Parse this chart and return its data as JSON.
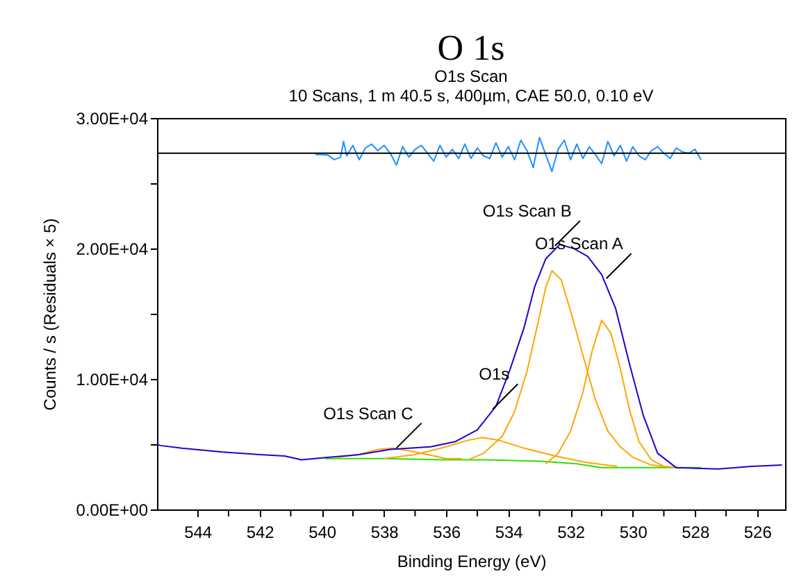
{
  "chart_data": {
    "type": "line",
    "title": "O 1s",
    "subtitle": "O1s Scan\n10 Scans,  1 m 40.5 s,  400µm,  CAE 50.0,  0.10 eV",
    "xlabel": "Binding Energy (eV)",
    "ylabel": "Counts / s  (Residuals × 5)",
    "xlim": [
      545.3,
      525.1
    ],
    "xticks": [
      {
        "value": 544,
        "label": "544"
      },
      {
        "value": 543,
        "label": null
      },
      {
        "value": 542,
        "label": "542"
      },
      {
        "value": 541,
        "label": null
      },
      {
        "value": 540,
        "label": "540"
      },
      {
        "value": 539,
        "label": null
      },
      {
        "value": 538,
        "label": "538"
      },
      {
        "value": 537,
        "label": null
      },
      {
        "value": 536,
        "label": "536"
      },
      {
        "value": 535,
        "label": null
      },
      {
        "value": 534,
        "label": "534"
      },
      {
        "value": 533,
        "label": null
      },
      {
        "value": 532,
        "label": "532"
      },
      {
        "value": 531,
        "label": null
      },
      {
        "value": 530,
        "label": "530"
      },
      {
        "value": 529,
        "label": null
      },
      {
        "value": 528,
        "label": "528"
      },
      {
        "value": 527,
        "label": null
      },
      {
        "value": 526,
        "label": "526"
      }
    ],
    "ylim": [
      0,
      30000
    ],
    "yticks": [
      {
        "value": 0,
        "label": "0.00E+00"
      },
      {
        "value": 5000,
        "label": null
      },
      {
        "value": 10000,
        "label": "1.00E+04"
      },
      {
        "value": 15000,
        "label": null
      },
      {
        "value": 20000,
        "label": "2.00E+04"
      },
      {
        "value": 25000,
        "label": null
      },
      {
        "value": 30000,
        "label": "3.00E+04"
      }
    ],
    "grid": false,
    "legend": false,
    "marker": "none",
    "line_style": "solid",
    "ref_lines": [
      {
        "axis": "y",
        "value": 27300,
        "color": "#000000"
      }
    ],
    "annotations": [
      {
        "text": "O1s Scan B",
        "x": 532.5,
        "y": 20200
      },
      {
        "text": "O1s Scan A",
        "x": 530.85,
        "y": 17700
      },
      {
        "text": "O1s",
        "x": 534.5,
        "y": 7700
      },
      {
        "text": "O1s Scan C",
        "x": 537.6,
        "y": 4700
      }
    ],
    "series": [
      {
        "color": "#33dd00",
        "x": [
          539.9,
          538,
          536,
          534.7,
          533,
          531.8,
          531,
          530,
          529,
          528.3,
          527.8
        ],
        "values": [
          3900,
          3900,
          3800,
          3800,
          3700,
          3500,
          3200,
          3200,
          3200,
          3200,
          3200
        ]
      },
      {
        "color": "#ffa500",
        "x": [
          539.5,
          538.8,
          538.2,
          537.7,
          537.2,
          536.6,
          536.0,
          535.5
        ],
        "values": [
          4000,
          4200,
          4600,
          4700,
          4500,
          4200,
          3900,
          3900
        ]
      },
      {
        "color": "#ffa500",
        "x": [
          538,
          537,
          536,
          535.3,
          534.85,
          534.3,
          533.5,
          532.5,
          531.5,
          530.5
        ],
        "values": [
          3900,
          4200,
          4800,
          5300,
          5500,
          5300,
          4700,
          4100,
          3600,
          3300
        ]
      },
      {
        "color": "#ffa500",
        "x": [
          535.3,
          534.8,
          534.2,
          533.8,
          533.4,
          533.0,
          532.8,
          532.6,
          532.3,
          532.0,
          531.6,
          531.2,
          530.8,
          530.4,
          530.0,
          529.4,
          528.8
        ],
        "values": [
          3800,
          4300,
          5600,
          7500,
          10600,
          14800,
          17000,
          18300,
          17600,
          15200,
          11800,
          8400,
          6000,
          4800,
          4000,
          3400,
          3250
        ]
      },
      {
        "color": "#ffa500",
        "x": [
          532.8,
          532.4,
          532.0,
          531.6,
          531.3,
          531.0,
          530.7,
          530.4,
          530.1,
          529.8,
          529.4,
          529.0,
          528.5
        ],
        "values": [
          3500,
          4300,
          6000,
          9000,
          12200,
          14500,
          13500,
          10800,
          7600,
          5200,
          3800,
          3300,
          3200
        ]
      },
      {
        "color": "#1e90ff",
        "x": [
          540.2,
          540.0,
          539.8,
          539.6,
          539.4,
          539.3,
          539.2,
          539.0,
          538.8,
          538.6,
          538.4,
          538.2,
          538.0,
          537.8,
          537.6,
          537.4,
          537.2,
          537.0,
          536.8,
          536.6,
          536.4,
          536.2,
          536.0,
          535.8,
          535.6,
          535.4,
          535.2,
          535.0,
          534.8,
          534.6,
          534.4,
          534.2,
          534.0,
          533.8,
          533.6,
          533.4,
          533.2,
          533.0,
          532.8,
          532.6,
          532.4,
          532.2,
          532.0,
          531.8,
          531.6,
          531.4,
          531.2,
          531.0,
          530.8,
          530.6,
          530.4,
          530.2,
          530.0,
          529.8,
          529.6,
          529.4,
          529.2,
          529.0,
          528.8,
          528.6,
          528.4,
          528.2,
          528.0,
          527.8
        ],
        "values": [
          27200,
          27200,
          27150,
          26800,
          27000,
          28200,
          27100,
          27900,
          26800,
          27700,
          28000,
          27500,
          27900,
          27300,
          26400,
          27800,
          27000,
          27600,
          27900,
          27300,
          26700,
          27900,
          27000,
          27600,
          26900,
          28000,
          26900,
          27700,
          27100,
          26900,
          28100,
          27000,
          27800,
          26800,
          28300,
          27500,
          26200,
          28500,
          27200,
          25900,
          27600,
          28300,
          26800,
          28000,
          26900,
          27800,
          27200,
          26500,
          28200,
          27100,
          27900,
          26700,
          27800,
          27100,
          26800,
          27500,
          27800,
          27300,
          26900,
          27700,
          27400,
          27300,
          27600,
          26800
        ]
      },
      {
        "color": "#2200cc",
        "x": [
          545.3,
          545.2,
          544.5,
          543.2,
          542.0,
          541.2,
          540.65,
          539.75,
          538.8,
          537.8,
          536.5,
          535.7,
          535.0,
          534.4,
          533.95,
          533.5,
          533.15,
          532.8,
          532.35,
          531.9,
          531.45,
          531.0,
          530.55,
          530.1,
          529.66,
          529.2,
          528.6,
          527.25,
          526.2,
          525.2
        ],
        "values": [
          5000,
          4900,
          4700,
          4400,
          4200,
          4100,
          3800,
          4000,
          4200,
          4600,
          4800,
          5200,
          6100,
          7900,
          10700,
          13900,
          17100,
          19200,
          20300,
          20000,
          19400,
          18000,
          15400,
          11100,
          7200,
          4300,
          3200,
          3100,
          3300,
          3400
        ]
      }
    ]
  }
}
